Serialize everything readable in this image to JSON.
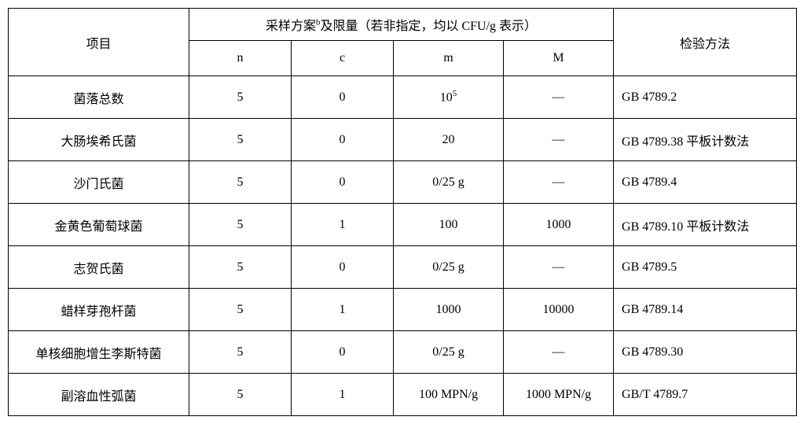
{
  "header": {
    "item": "项目",
    "sampling_group": "采样方案",
    "sampling_group_sup": "b",
    "sampling_group_suffix": "及限量（若非指定，均以 CFU/g 表示）",
    "n": "n",
    "c": "c",
    "m": "m",
    "M": "M",
    "method": "检验方法"
  },
  "rows": [
    {
      "item": "菌落总数",
      "n": "5",
      "c": "0",
      "m_html": "10<sup>5</sup>",
      "M": "—",
      "method": "GB 4789.2"
    },
    {
      "item": "大肠埃希氏菌",
      "n": "5",
      "c": "0",
      "m_html": "20",
      "M": "—",
      "method": "GB 4789.38 平板计数法"
    },
    {
      "item": "沙门氏菌",
      "n": "5",
      "c": "0",
      "m_html": "0/25 g",
      "M": "—",
      "method": "GB 4789.4"
    },
    {
      "item": "金黄色葡萄球菌",
      "n": "5",
      "c": "1",
      "m_html": "100",
      "M": "1000",
      "method": "GB 4789.10 平板计数法"
    },
    {
      "item": "志贺氏菌",
      "n": "5",
      "c": "0",
      "m_html": "0/25 g",
      "M": "—",
      "method": "GB 4789.5"
    },
    {
      "item": "蜡样芽孢杆菌",
      "n": "5",
      "c": "1",
      "m_html": "1000",
      "M": "10000",
      "method": "GB 4789.14"
    },
    {
      "item": "单核细胞增生李斯特菌",
      "n": "5",
      "c": "0",
      "m_html": "0/25 g",
      "M": "—",
      "method": "GB 4789.30"
    },
    {
      "item": "副溶血性弧菌",
      "n": "5",
      "c": "1",
      "m_html": "100 MPN/g",
      "M": "1000 MPN/g",
      "method": "GB/T 4789.7"
    }
  ]
}
